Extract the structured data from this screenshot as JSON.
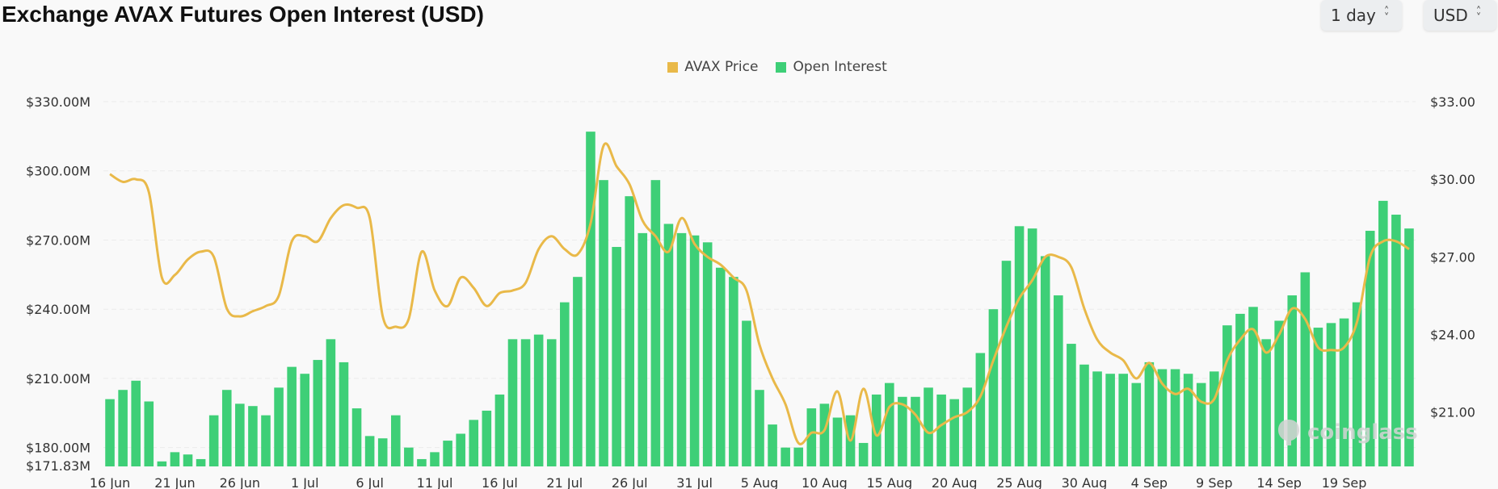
{
  "header": {
    "title": "Exchange AVAX Futures Open Interest (USD)",
    "interval_select": "1 day",
    "currency_select": "USD"
  },
  "legend": [
    {
      "label": "AVAX Price",
      "color": "#e9b949"
    },
    {
      "label": "Open Interest",
      "color": "#3ecf77"
    }
  ],
  "watermark": "coinglass",
  "chart_data": {
    "type": "bar",
    "title": "Exchange AVAX Futures Open Interest (USD)",
    "x_tick_labels": [
      "16 Jun",
      "21 Jun",
      "26 Jun",
      "1 Jul",
      "6 Jul",
      "11 Jul",
      "16 Jul",
      "21 Jul",
      "26 Jul",
      "31 Jul",
      "5 Aug",
      "10 Aug",
      "15 Aug",
      "20 Aug",
      "25 Aug",
      "30 Aug",
      "4 Sep",
      "9 Sep",
      "14 Sep",
      "19 Sep"
    ],
    "y_left": {
      "ticks": [
        "$330.00M",
        "$300.00M",
        "$270.00M",
        "$240.00M",
        "$210.00M",
        "$180.00M"
      ],
      "min_label": "$171.83M",
      "range": [
        171.83,
        330
      ],
      "unit": "USD millions"
    },
    "y_right": {
      "ticks": [
        "$33.00",
        "$30.00",
        "$27.00",
        "$24.00",
        "$21.00"
      ],
      "range": [
        18.9,
        33
      ],
      "unit": "USD"
    },
    "grid": true,
    "legend_position": "top-center",
    "series": [
      {
        "name": "Open Interest",
        "type": "bar",
        "axis": "left",
        "color": "#3ecf77",
        "values": [
          201,
          205,
          209,
          200,
          174,
          178,
          177,
          175,
          194,
          205,
          199,
          198,
          194,
          206,
          215,
          212,
          218,
          227,
          217,
          197,
          185,
          184,
          194,
          180,
          175,
          178,
          183,
          186,
          192,
          196,
          203,
          227,
          227,
          229,
          227,
          243,
          254,
          317,
          296,
          267,
          289,
          273,
          296,
          277,
          273,
          272,
          269,
          258,
          254,
          235,
          205,
          190,
          180,
          180,
          197,
          199,
          193,
          194,
          182,
          203,
          208,
          202,
          202,
          206,
          203,
          201,
          206,
          221,
          240,
          261,
          276,
          275,
          263,
          246,
          225,
          216,
          213,
          212,
          212,
          208,
          217,
          214,
          214,
          212,
          208,
          213,
          233,
          238,
          241,
          227,
          235,
          246,
          256,
          232,
          234,
          236,
          243,
          274,
          287,
          281,
          275
        ]
      },
      {
        "name": "AVAX Price",
        "type": "line",
        "axis": "right",
        "color": "#e9b949",
        "values": [
          30.2,
          29.9,
          30.0,
          29.5,
          26.2,
          26.3,
          26.9,
          27.2,
          27.0,
          25.0,
          24.7,
          24.9,
          25.1,
          25.5,
          27.6,
          27.8,
          27.6,
          28.5,
          29.0,
          28.9,
          28.5,
          24.7,
          24.3,
          24.6,
          27.2,
          25.7,
          25.1,
          26.2,
          25.8,
          25.1,
          25.6,
          25.7,
          26.0,
          27.3,
          27.8,
          27.3,
          27.1,
          28.3,
          31.3,
          30.5,
          29.8,
          28.4,
          27.8,
          27.2,
          28.5,
          27.5,
          27.0,
          26.7,
          26.2,
          25.7,
          23.6,
          22.3,
          21.3,
          19.8,
          20.2,
          20.3,
          21.8,
          19.9,
          21.9,
          20.1,
          21.2,
          21.3,
          20.9,
          20.2,
          20.5,
          20.8,
          21.0,
          21.6,
          23.0,
          24.3,
          25.4,
          26.1,
          27.0,
          27.0,
          26.6,
          25.0,
          23.8,
          23.3,
          23.0,
          22.3,
          22.9,
          22.1,
          21.7,
          21.9,
          21.4,
          21.5,
          23.0,
          23.8,
          24.2,
          23.3,
          24.0,
          25.0,
          24.6,
          23.5,
          23.4,
          23.5,
          24.5,
          27.0,
          27.6,
          27.6,
          27.3
        ]
      }
    ]
  }
}
